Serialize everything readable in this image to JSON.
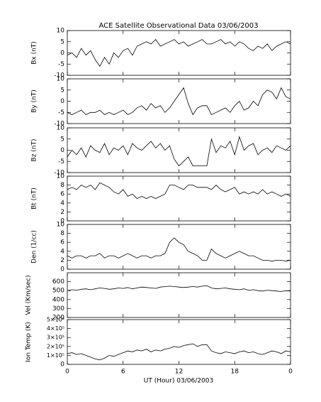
{
  "chart_data": [
    {
      "type": "line",
      "title": "ACE Satellite Observational Data   03/06/2003",
      "ylabel": "Bx (nT)",
      "x": [
        0,
        0.5,
        1,
        1.5,
        2,
        2.5,
        3,
        3.5,
        4,
        4.5,
        5,
        5.5,
        6,
        6.5,
        7,
        7.5,
        8,
        8.5,
        9,
        9.5,
        10,
        10.5,
        11,
        11.5,
        12,
        12.5,
        13,
        13.5,
        14,
        14.5,
        15,
        15.5,
        16,
        16.5,
        17,
        17.5,
        18,
        18.5,
        19,
        19.5,
        20,
        20.5,
        21,
        21.5,
        22,
        22.5,
        23,
        23.5,
        24
      ],
      "values": [
        -1,
        0,
        -2,
        2,
        -1,
        1,
        -3,
        -6,
        -2,
        -5,
        0,
        -2,
        1,
        2,
        -1,
        3,
        4,
        5,
        4,
        6,
        3,
        4,
        5,
        6,
        4,
        5,
        3,
        4,
        5,
        6,
        4,
        4,
        5,
        6,
        4,
        5,
        3,
        5,
        4,
        2,
        1,
        3,
        2,
        4,
        1,
        3,
        4,
        5,
        4
      ],
      "xlim": [
        0,
        24
      ],
      "ylim": [
        -10,
        10
      ],
      "yticks": [
        -10,
        -5,
        0,
        5,
        10
      ],
      "color": "#000000"
    },
    {
      "type": "line",
      "ylabel": "By (nT)",
      "x": [
        0,
        0.5,
        1,
        1.5,
        2,
        2.5,
        3,
        3.5,
        4,
        4.5,
        5,
        5.5,
        6,
        6.5,
        7,
        7.5,
        8,
        8.5,
        9,
        9.5,
        10,
        10.5,
        11,
        11.5,
        12,
        12.5,
        13,
        13.5,
        14,
        14.5,
        15,
        15.5,
        16,
        16.5,
        17,
        17.5,
        18,
        18.5,
        19,
        19.5,
        20,
        20.5,
        21,
        21.5,
        22,
        22.5,
        23,
        23.5,
        24
      ],
      "values": [
        -5,
        -6,
        -5,
        -4,
        -6,
        -5,
        -5,
        -4,
        -6,
        -5,
        -6,
        -5,
        -4,
        -6,
        -5,
        -3,
        -2,
        -4,
        -1,
        -3,
        -2,
        -5,
        -3,
        0,
        3,
        6,
        -1,
        -6,
        -3,
        -2,
        -2,
        -6,
        -5,
        -4,
        -3,
        -5,
        -2,
        0,
        -4,
        -3,
        0,
        -2,
        3,
        5,
        4,
        1,
        6,
        2,
        1
      ],
      "xlim": [
        0,
        24
      ],
      "ylim": [
        -10,
        10
      ],
      "yticks": [
        -10,
        -5,
        0,
        5,
        10
      ],
      "color": "#000000"
    },
    {
      "type": "line",
      "ylabel": "Bz (nT)",
      "x": [
        0,
        0.5,
        1,
        1.5,
        2,
        2.5,
        3,
        3.5,
        4,
        4.5,
        5,
        5.5,
        6,
        6.5,
        7,
        7.5,
        8,
        8.5,
        9,
        9.5,
        10,
        10.5,
        11,
        11.5,
        12,
        12.5,
        13,
        13.5,
        14,
        14.5,
        15,
        15.5,
        16,
        16.5,
        17,
        17.5,
        18,
        18.5,
        19,
        19.5,
        20,
        20.5,
        21,
        21.5,
        22,
        22.5,
        23,
        23.5,
        24
      ],
      "values": [
        -3,
        0,
        -2,
        1,
        -3,
        2,
        0,
        -1,
        3,
        -2,
        1,
        0,
        2,
        -2,
        3,
        1,
        0,
        2,
        4,
        1,
        3,
        0,
        2,
        -4,
        -7,
        -5,
        -3,
        -7,
        -7,
        -7,
        -7,
        5,
        -1,
        2,
        1,
        4,
        -2,
        6,
        0,
        2,
        3,
        -2,
        0,
        1,
        -1,
        2,
        1,
        0,
        2
      ],
      "xlim": [
        0,
        24
      ],
      "ylim": [
        -10,
        10
      ],
      "yticks": [
        -10,
        -5,
        0,
        5,
        10
      ],
      "color": "#000000"
    },
    {
      "type": "line",
      "ylabel": "Bt (nT)",
      "x": [
        0,
        0.5,
        1,
        1.5,
        2,
        2.5,
        3,
        3.5,
        4,
        4.5,
        5,
        5.5,
        6,
        6.5,
        7,
        7.5,
        8,
        8.5,
        9,
        9.5,
        10,
        10.5,
        11,
        11.5,
        12,
        12.5,
        13,
        13.5,
        14,
        14.5,
        15,
        15.5,
        16,
        16.5,
        17,
        17.5,
        18,
        18.5,
        19,
        19.5,
        20,
        20.5,
        21,
        21.5,
        22,
        22.5,
        23,
        23.5,
        24
      ],
      "values": [
        7,
        7.5,
        7,
        8,
        7.5,
        8,
        7,
        8.5,
        8,
        7.5,
        6.5,
        6,
        7,
        5.5,
        6,
        5,
        5.5,
        5,
        5.5,
        5,
        5.5,
        6,
        8,
        8,
        7.5,
        7,
        8,
        8,
        7.5,
        7.5,
        7.5,
        7,
        8,
        7,
        6.5,
        7,
        7.5,
        6,
        6.5,
        6,
        6.5,
        6,
        7,
        6,
        6.5,
        6,
        5.5,
        6,
        5.5
      ],
      "xlim": [
        0,
        24
      ],
      "ylim": [
        0,
        10
      ],
      "yticks": [
        0,
        2,
        4,
        6,
        8,
        10
      ],
      "color": "#000000"
    },
    {
      "type": "line",
      "ylabel": "Den (1/cc)",
      "x": [
        0,
        0.5,
        1,
        1.5,
        2,
        2.5,
        3,
        3.5,
        4,
        4.5,
        5,
        5.5,
        6,
        6.5,
        7,
        7.5,
        8,
        8.5,
        9,
        9.5,
        10,
        10.5,
        11,
        11.5,
        12,
        12.5,
        13,
        13.5,
        14,
        14.5,
        15,
        15.5,
        16,
        16.5,
        17,
        17.5,
        18,
        18.5,
        19,
        19.5,
        20,
        20.5,
        21,
        21.5,
        22,
        22.5,
        23,
        23.5,
        24
      ],
      "values": [
        3,
        2.5,
        3,
        3,
        2.5,
        3,
        3,
        3.5,
        2.5,
        3,
        3,
        2.5,
        3,
        3.5,
        3,
        2.5,
        3,
        3,
        2.5,
        3,
        3,
        3.5,
        6,
        7,
        6,
        5.5,
        4,
        3.5,
        3,
        2,
        2,
        4.5,
        3.5,
        3,
        2.5,
        3,
        3.5,
        4,
        3.5,
        3,
        3,
        2.5,
        2,
        2,
        1.8,
        2,
        2,
        1.8,
        2
      ],
      "xlim": [
        0,
        24
      ],
      "ylim": [
        0,
        10
      ],
      "yticks": [
        0,
        2,
        4,
        6,
        8,
        10
      ],
      "color": "#000000"
    },
    {
      "type": "line",
      "ylabel": "Vel (Km/sec)",
      "x": [
        0,
        0.5,
        1,
        1.5,
        2,
        2.5,
        3,
        3.5,
        4,
        4.5,
        5,
        5.5,
        6,
        6.5,
        7,
        7.5,
        8,
        8.5,
        9,
        9.5,
        10,
        10.5,
        11,
        11.5,
        12,
        12.5,
        13,
        13.5,
        14,
        14.5,
        15,
        15.5,
        16,
        16.5,
        17,
        17.5,
        18,
        18.5,
        19,
        19.5,
        20,
        20.5,
        21,
        21.5,
        22,
        22.5,
        23,
        23.5,
        24
      ],
      "values": [
        500,
        510,
        505,
        515,
        520,
        510,
        520,
        530,
        525,
        515,
        520,
        530,
        525,
        535,
        520,
        530,
        540,
        535,
        530,
        525,
        540,
        545,
        550,
        545,
        540,
        535,
        540,
        545,
        540,
        550,
        555,
        530,
        520,
        525,
        530,
        520,
        515,
        510,
        520,
        505,
        510,
        500,
        495,
        505,
        500,
        495,
        490,
        500,
        495
      ],
      "xlim": [
        0,
        24
      ],
      "ylim": [
        200,
        700
      ],
      "yticks": [
        200,
        300,
        400,
        500,
        600
      ],
      "color": "#000000"
    },
    {
      "type": "line",
      "ylabel": "Ion Temp (K)",
      "xlabel": "UT (Hour)  03/06/2003",
      "x": [
        0,
        0.5,
        1,
        1.5,
        2,
        2.5,
        3,
        3.5,
        4,
        4.5,
        5,
        5.5,
        6,
        6.5,
        7,
        7.5,
        8,
        8.5,
        9,
        9.5,
        10,
        10.5,
        11,
        11.5,
        12,
        12.5,
        13,
        13.5,
        14,
        14.5,
        15,
        15.5,
        16,
        16.5,
        17,
        17.5,
        18,
        18.5,
        19,
        19.5,
        20,
        20.5,
        21,
        21.5,
        22,
        22.5,
        23,
        23.5,
        24
      ],
      "values": [
        120000,
        130000,
        110000,
        120000,
        100000,
        80000,
        60000,
        50000,
        70000,
        100000,
        90000,
        110000,
        130000,
        150000,
        140000,
        160000,
        150000,
        170000,
        140000,
        160000,
        150000,
        170000,
        180000,
        200000,
        190000,
        210000,
        220000,
        230000,
        200000,
        220000,
        220000,
        150000,
        130000,
        120000,
        140000,
        130000,
        120000,
        140000,
        150000,
        130000,
        140000,
        120000,
        110000,
        130000,
        150000,
        140000,
        120000,
        150000,
        140000
      ],
      "xlim": [
        0,
        24
      ],
      "ylim": [
        0,
        500000
      ],
      "yticks": [
        0,
        {
          "value": 100000,
          "label": "1×10⁵"
        },
        {
          "value": 200000,
          "label": "2×10⁵"
        },
        {
          "value": 300000,
          "label": "3×10⁵"
        },
        {
          "value": 400000,
          "label": "4×10⁵"
        },
        {
          "value": 500000,
          "label": "5×10⁵"
        }
      ],
      "xticks": [
        0,
        6,
        12,
        18,
        {
          "value": 24,
          "label": "0"
        }
      ],
      "color": "#000000"
    }
  ]
}
